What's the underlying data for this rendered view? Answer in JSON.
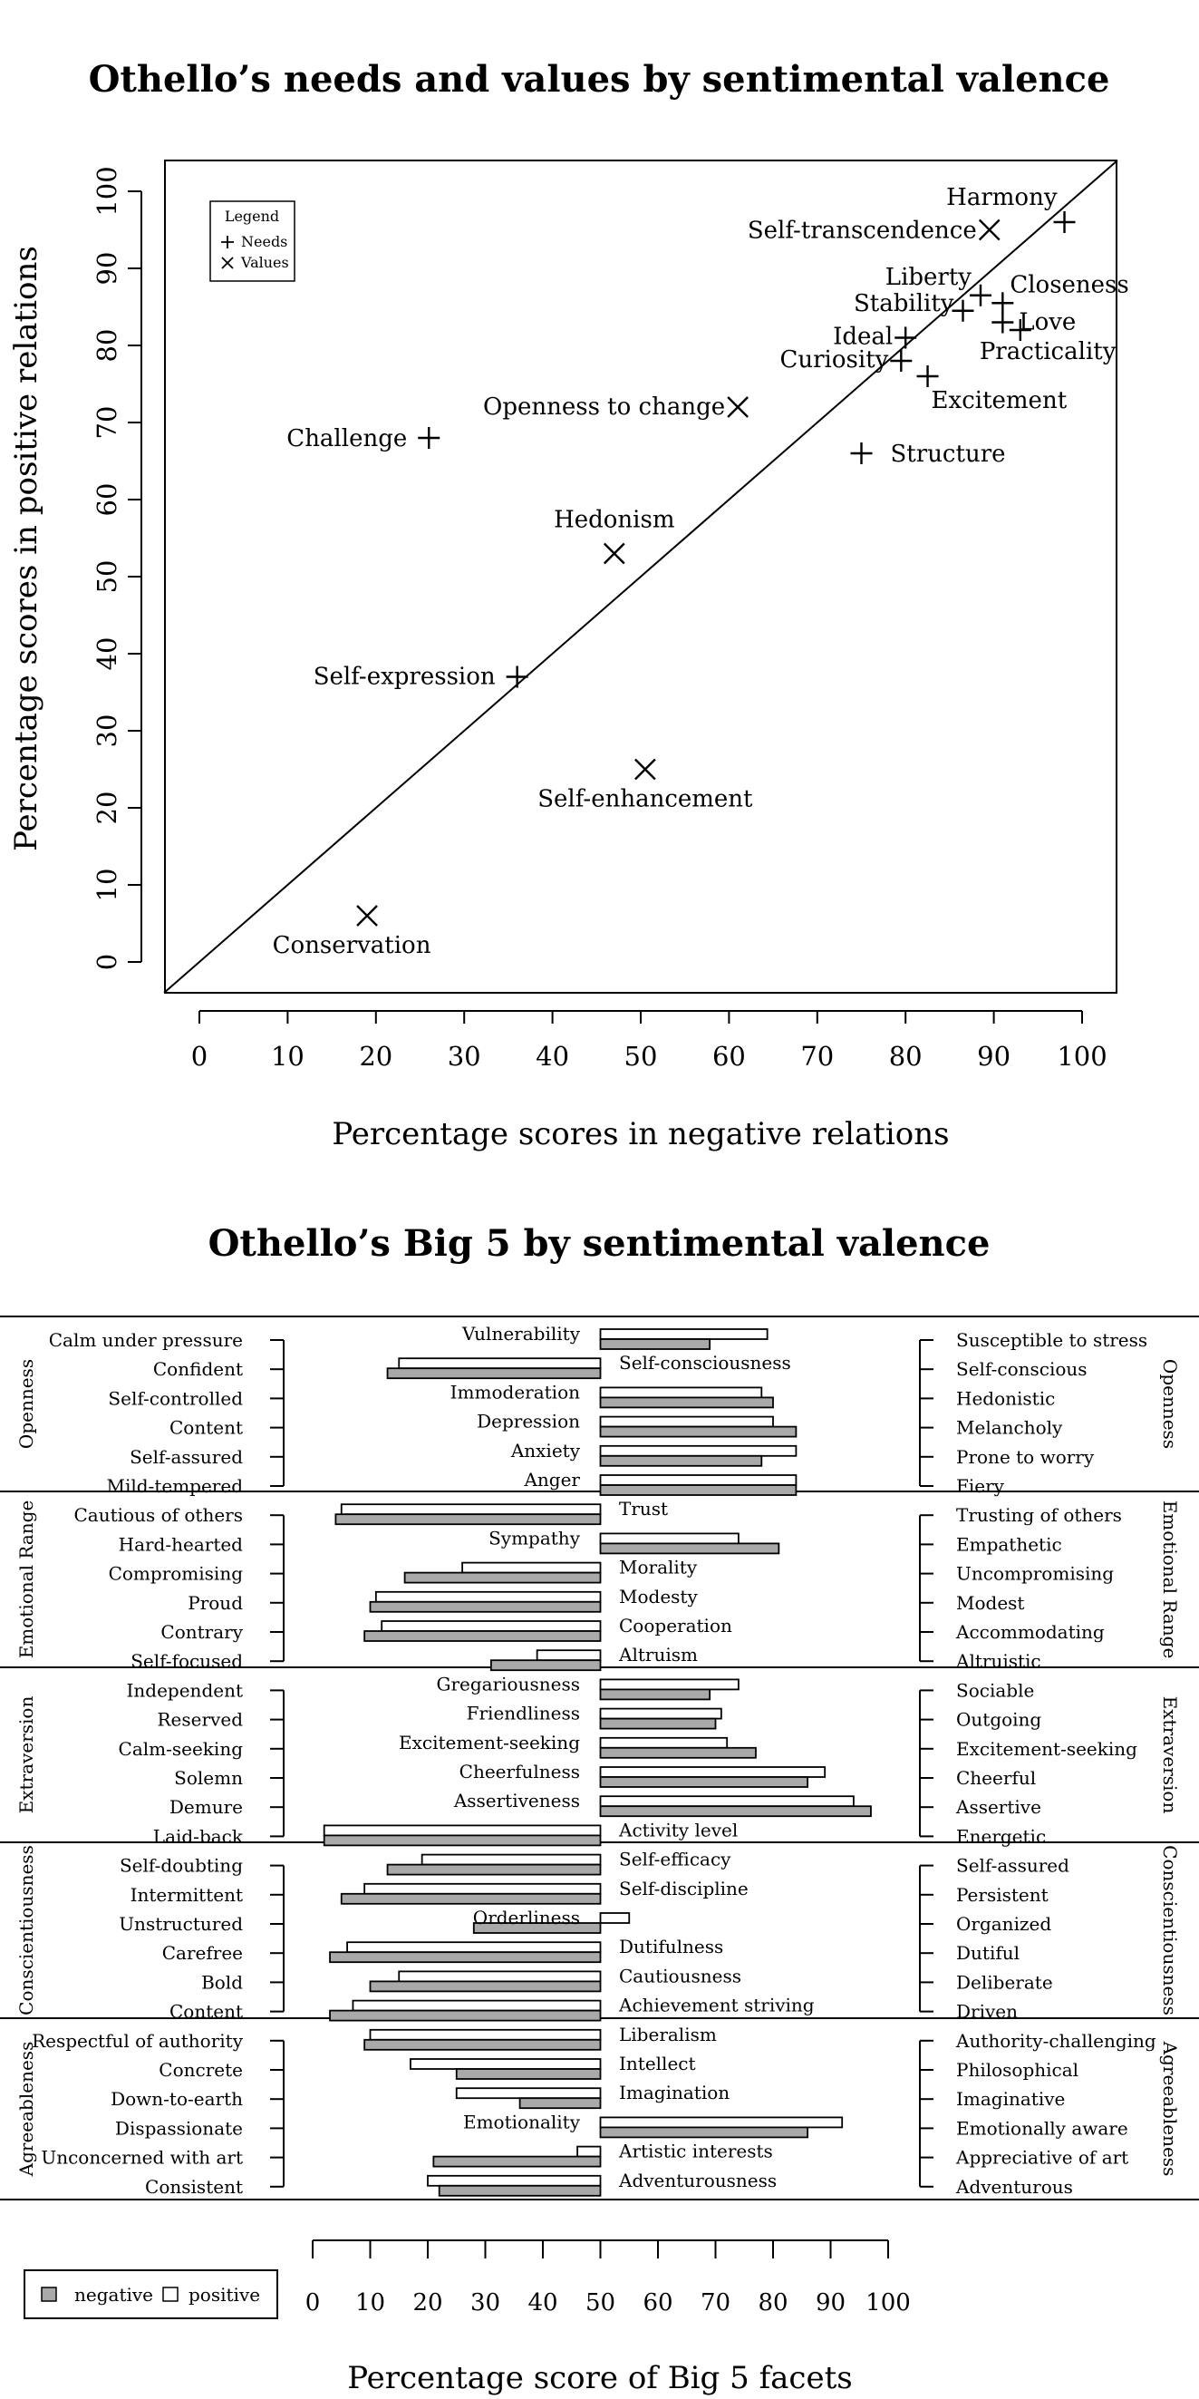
{
  "chart_data": [
    {
      "type": "scatter",
      "title": "Othello’s needs and values by sentimental valence",
      "xlabel": "Percentage scores in negative relations",
      "ylabel": "Percentage scores in positive relations",
      "xlim": [
        0,
        100
      ],
      "ylim": [
        0,
        100
      ],
      "xticks": [
        "0",
        "10",
        "20",
        "30",
        "40",
        "50",
        "60",
        "70",
        "80",
        "90",
        "100"
      ],
      "yticks": [
        "0",
        "10",
        "20",
        "30",
        "40",
        "50",
        "60",
        "70",
        "80",
        "90",
        "100"
      ],
      "legend": {
        "title": "Legend",
        "position": "top-left",
        "entries": [
          "Needs",
          "Values"
        ]
      },
      "series": [
        {
          "name": "Needs",
          "points": [
            {
              "label": "Harmony",
              "x": 98,
              "y": 96
            },
            {
              "label": "Liberty",
              "x": 88.5,
              "y": 86.5
            },
            {
              "label": "Closeness",
              "x": 91,
              "y": 85.5
            },
            {
              "label": "Stability",
              "x": 86.5,
              "y": 84.5
            },
            {
              "label": "Love",
              "x": 91,
              "y": 83
            },
            {
              "label": "Practicality",
              "x": 93,
              "y": 82
            },
            {
              "label": "Ideal",
              "x": 80,
              "y": 81
            },
            {
              "label": "Curiosity",
              "x": 79.5,
              "y": 78
            },
            {
              "label": "Excitement",
              "x": 82.5,
              "y": 76
            },
            {
              "label": "Challenge",
              "x": 26,
              "y": 68
            },
            {
              "label": "Structure",
              "x": 75,
              "y": 66
            },
            {
              "label": "Self-expression",
              "x": 36,
              "y": 37
            }
          ]
        },
        {
          "name": "Values",
          "points": [
            {
              "label": "Self-transcendence",
              "x": 89.5,
              "y": 95
            },
            {
              "label": "Openness to change",
              "x": 61,
              "y": 72
            },
            {
              "label": "Hedonism",
              "x": 47,
              "y": 53
            },
            {
              "label": "Self-enhancement",
              "x": 50.5,
              "y": 25
            },
            {
              "label": "Conservation",
              "x": 19,
              "y": 6
            }
          ]
        }
      ]
    },
    {
      "type": "bar",
      "title": "Othello’s Big 5 by sentimental valence",
      "xlabel": "Percentage score of Big 5 facets",
      "xlim": [
        0,
        100
      ],
      "xticks": [
        "0",
        "10",
        "20",
        "30",
        "40",
        "50",
        "60",
        "70",
        "80",
        "90",
        "100"
      ],
      "legend": {
        "position": "bottom-left",
        "entries": [
          "negative",
          "positive"
        ]
      },
      "groups": [
        {
          "left_label": "Openness",
          "right_label": "Openness",
          "facets": [
            {
              "low": "Calm under pressure",
              "name": "Vulnerability",
              "high": "Susceptible to stress",
              "positive": 79,
              "negative": 69
            },
            {
              "low": "Confident",
              "name": "Self-consciousness",
              "high": "Self-conscious",
              "positive": 15,
              "negative": 13
            },
            {
              "low": "Self-controlled",
              "name": "Immoderation",
              "high": "Hedonistic",
              "positive": 78,
              "negative": 80
            },
            {
              "low": "Content",
              "name": "Depression",
              "high": "Melancholy",
              "positive": 80,
              "negative": 84
            },
            {
              "low": "Self-assured",
              "name": "Anxiety",
              "high": "Prone to worry",
              "positive": 84,
              "negative": 78
            },
            {
              "low": "Mild-tempered",
              "name": "Anger",
              "high": "Fiery",
              "positive": 84,
              "negative": 84
            }
          ]
        },
        {
          "left_label": "Emotional Range",
          "right_label": "Emotional Range",
          "facets": [
            {
              "low": "Cautious of others",
              "name": "Trust",
              "high": "Trusting of others",
              "positive": 5,
              "negative": 4
            },
            {
              "low": "Hard-hearted",
              "name": "Sympathy",
              "high": "Empathetic",
              "positive": 74,
              "negative": 81
            },
            {
              "low": "Compromising",
              "name": "Morality",
              "high": "Uncompromising",
              "positive": 26,
              "negative": 16
            },
            {
              "low": "Proud",
              "name": "Modesty",
              "high": "Modest",
              "positive": 11,
              "negative": 10
            },
            {
              "low": "Contrary",
              "name": "Cooperation",
              "high": "Accommodating",
              "positive": 12,
              "negative": 9
            },
            {
              "low": "Self-focused",
              "name": "Altruism",
              "high": "Altruistic",
              "positive": 39,
              "negative": 31
            }
          ]
        },
        {
          "left_label": "Extraversion",
          "right_label": "Extraversion",
          "facets": [
            {
              "low": "Independent",
              "name": "Gregariousness",
              "high": "Sociable",
              "positive": 74,
              "negative": 69
            },
            {
              "low": "Reserved",
              "name": "Friendliness",
              "high": "Outgoing",
              "positive": 71,
              "negative": 70
            },
            {
              "low": "Calm-seeking",
              "name": "Excitement-seeking",
              "high": "Excitement-seeking",
              "positive": 72,
              "negative": 77
            },
            {
              "low": "Solemn",
              "name": "Cheerfulness",
              "high": "Cheerful",
              "positive": 89,
              "negative": 86
            },
            {
              "low": "Demure",
              "name": "Assertiveness",
              "high": "Assertive",
              "positive": 94,
              "negative": 97
            },
            {
              "low": "Laid-back",
              "name": "Activity level",
              "high": "Energetic",
              "positive": 2,
              "negative": 2
            }
          ]
        },
        {
          "left_label": "Conscientiousness",
          "right_label": "Conscientiousness",
          "facets": [
            {
              "low": "Self-doubting",
              "name": "Self-efficacy",
              "high": "Self-assured",
              "positive": 19,
              "negative": 13
            },
            {
              "low": "Intermittent",
              "name": "Self-discipline",
              "high": "Persistent",
              "positive": 9,
              "negative": 5
            },
            {
              "low": "Unstructured",
              "name": "Orderliness",
              "high": "Organized",
              "positive": 55,
              "negative": 28
            },
            {
              "low": "Carefree",
              "name": "Dutifulness",
              "high": "Dutiful",
              "positive": 6,
              "negative": 3
            },
            {
              "low": "Bold",
              "name": "Cautiousness",
              "high": "Deliberate",
              "positive": 15,
              "negative": 10
            },
            {
              "low": "Content",
              "name": "Achievement striving",
              "high": "Driven",
              "positive": 7,
              "negative": 3
            }
          ]
        },
        {
          "left_label": "Agreeableness",
          "right_label": "Agreeableness",
          "facets": [
            {
              "low": "Respectful of authority",
              "name": "Liberalism",
              "high": "Authority-challenging",
              "positive": 10,
              "negative": 9
            },
            {
              "low": "Concrete",
              "name": "Intellect",
              "high": "Philosophical",
              "positive": 17,
              "negative": 25
            },
            {
              "low": "Down-to-earth",
              "name": "Imagination",
              "high": "Imaginative",
              "positive": 25,
              "negative": 36
            },
            {
              "low": "Dispassionate",
              "name": "Emotionality",
              "high": "Emotionally aware",
              "positive": 92,
              "negative": 86
            },
            {
              "low": "Unconcerned with art",
              "name": "Artistic interests",
              "high": "Appreciative of art",
              "positive": 46,
              "negative": 21
            },
            {
              "low": "Consistent",
              "name": "Adventurousness",
              "high": "Adventurous",
              "positive": 20,
              "negative": 22
            }
          ]
        }
      ]
    }
  ]
}
